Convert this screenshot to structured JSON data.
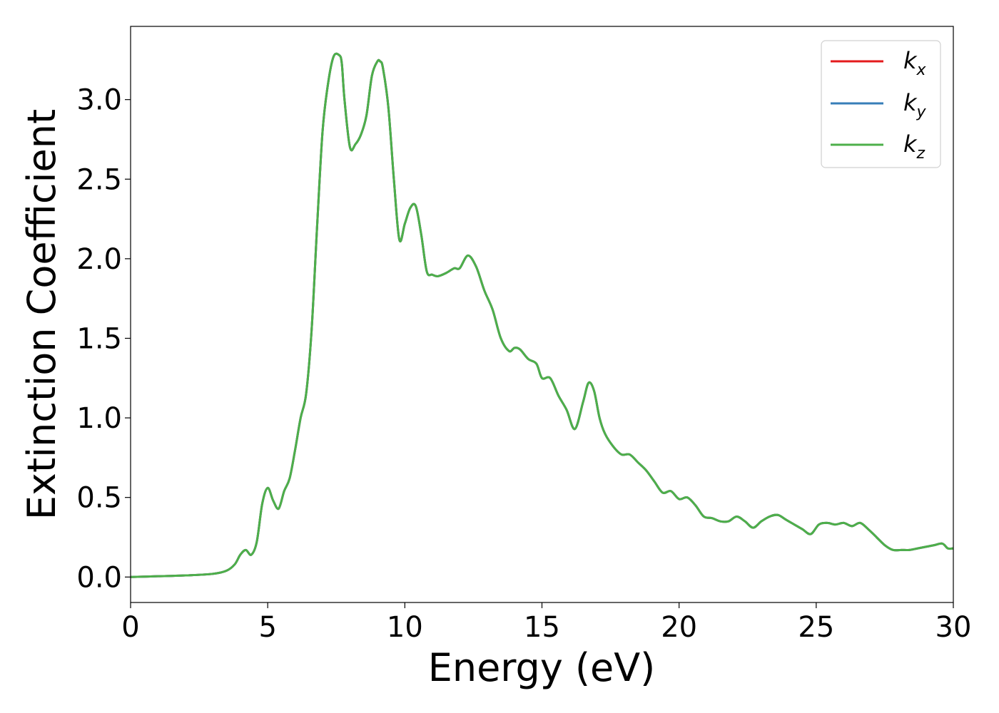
{
  "chart_data": {
    "type": "line",
    "xlabel": "Energy (eV)",
    "ylabel": "Extinction Coefficient",
    "xlim": [
      0,
      30
    ],
    "ylim": [
      -0.16,
      3.46
    ],
    "x_ticks": [
      0,
      5,
      10,
      15,
      20,
      25,
      30
    ],
    "x_tick_labels": [
      "0",
      "5",
      "10",
      "15",
      "20",
      "25",
      "30"
    ],
    "y_ticks": [
      0,
      0.5,
      1,
      1.5,
      2,
      2.5,
      3
    ],
    "y_tick_labels": [
      "0.0",
      "0.5",
      "1.0",
      "1.5",
      "2.0",
      "2.5",
      "3.0"
    ],
    "grid": false,
    "legend_position": "top-right",
    "x": [
      0,
      1,
      2,
      3,
      3.5,
      3.8,
      4.0,
      4.2,
      4.4,
      4.6,
      4.8,
      5.0,
      5.2,
      5.4,
      5.6,
      5.8,
      6.0,
      6.2,
      6.4,
      6.6,
      6.8,
      7.0,
      7.2,
      7.4,
      7.6,
      7.7,
      7.8,
      8.0,
      8.2,
      8.4,
      8.6,
      8.8,
      9.0,
      9.1,
      9.2,
      9.4,
      9.6,
      9.8,
      10.0,
      10.2,
      10.4,
      10.6,
      10.8,
      11.0,
      11.2,
      11.5,
      11.8,
      12.0,
      12.3,
      12.6,
      12.9,
      13.2,
      13.5,
      13.8,
      14.0,
      14.2,
      14.5,
      14.8,
      15.0,
      15.3,
      15.6,
      15.9,
      16.2,
      16.5,
      16.7,
      16.9,
      17.1,
      17.3,
      17.6,
      17.9,
      18.2,
      18.5,
      18.8,
      19.1,
      19.4,
      19.7,
      20.0,
      20.3,
      20.6,
      20.9,
      21.2,
      21.5,
      21.8,
      22.1,
      22.4,
      22.7,
      23.0,
      23.3,
      23.6,
      23.9,
      24.2,
      24.5,
      24.8,
      25.1,
      25.4,
      25.7,
      26.0,
      26.3,
      26.6,
      26.9,
      27.2,
      27.5,
      27.8,
      28.1,
      28.4,
      28.7,
      29.0,
      29.3,
      29.6,
      29.8,
      30.0
    ],
    "series": [
      {
        "name": "k_x",
        "color": "#e41a1c",
        "y": [
          0.0,
          0.005,
          0.01,
          0.02,
          0.04,
          0.08,
          0.14,
          0.17,
          0.14,
          0.22,
          0.46,
          0.56,
          0.48,
          0.43,
          0.54,
          0.62,
          0.8,
          1.0,
          1.15,
          1.55,
          2.2,
          2.8,
          3.1,
          3.27,
          3.28,
          3.23,
          3.0,
          2.7,
          2.72,
          2.78,
          2.9,
          3.15,
          3.24,
          3.24,
          3.2,
          2.95,
          2.5,
          2.12,
          2.22,
          2.32,
          2.33,
          2.15,
          1.92,
          1.9,
          1.89,
          1.91,
          1.94,
          1.94,
          2.02,
          1.95,
          1.8,
          1.68,
          1.5,
          1.42,
          1.44,
          1.43,
          1.37,
          1.34,
          1.25,
          1.25,
          1.14,
          1.05,
          0.93,
          1.1,
          1.22,
          1.17,
          1.0,
          0.9,
          0.82,
          0.77,
          0.77,
          0.72,
          0.67,
          0.6,
          0.53,
          0.54,
          0.49,
          0.5,
          0.45,
          0.38,
          0.37,
          0.35,
          0.35,
          0.38,
          0.35,
          0.31,
          0.35,
          0.38,
          0.39,
          0.36,
          0.33,
          0.3,
          0.27,
          0.33,
          0.34,
          0.33,
          0.34,
          0.32,
          0.34,
          0.3,
          0.25,
          0.2,
          0.17,
          0.17,
          0.17,
          0.18,
          0.19,
          0.2,
          0.21,
          0.18,
          0.18
        ]
      },
      {
        "name": "k_y",
        "color": "#377eb8",
        "y": [
          0.0,
          0.005,
          0.01,
          0.02,
          0.04,
          0.08,
          0.14,
          0.17,
          0.14,
          0.22,
          0.46,
          0.56,
          0.48,
          0.43,
          0.54,
          0.62,
          0.8,
          1.0,
          1.15,
          1.55,
          2.2,
          2.8,
          3.1,
          3.27,
          3.28,
          3.23,
          3.0,
          2.7,
          2.72,
          2.78,
          2.9,
          3.15,
          3.24,
          3.24,
          3.2,
          2.95,
          2.5,
          2.12,
          2.22,
          2.32,
          2.33,
          2.15,
          1.92,
          1.9,
          1.89,
          1.91,
          1.94,
          1.94,
          2.02,
          1.95,
          1.8,
          1.68,
          1.5,
          1.42,
          1.44,
          1.43,
          1.37,
          1.34,
          1.25,
          1.25,
          1.14,
          1.05,
          0.93,
          1.1,
          1.22,
          1.17,
          1.0,
          0.9,
          0.82,
          0.77,
          0.77,
          0.72,
          0.67,
          0.6,
          0.53,
          0.54,
          0.49,
          0.5,
          0.45,
          0.38,
          0.37,
          0.35,
          0.35,
          0.38,
          0.35,
          0.31,
          0.35,
          0.38,
          0.39,
          0.36,
          0.33,
          0.3,
          0.27,
          0.33,
          0.34,
          0.33,
          0.34,
          0.32,
          0.34,
          0.3,
          0.25,
          0.2,
          0.17,
          0.17,
          0.17,
          0.18,
          0.19,
          0.2,
          0.21,
          0.18,
          0.18
        ]
      },
      {
        "name": "k_z",
        "color": "#4daf4a",
        "y": [
          0.0,
          0.005,
          0.01,
          0.02,
          0.04,
          0.08,
          0.14,
          0.17,
          0.14,
          0.22,
          0.46,
          0.56,
          0.48,
          0.43,
          0.54,
          0.62,
          0.8,
          1.0,
          1.15,
          1.55,
          2.2,
          2.8,
          3.1,
          3.27,
          3.28,
          3.23,
          3.0,
          2.7,
          2.72,
          2.78,
          2.9,
          3.15,
          3.24,
          3.24,
          3.2,
          2.95,
          2.5,
          2.12,
          2.22,
          2.32,
          2.33,
          2.15,
          1.92,
          1.9,
          1.89,
          1.91,
          1.94,
          1.94,
          2.02,
          1.95,
          1.8,
          1.68,
          1.5,
          1.42,
          1.44,
          1.43,
          1.37,
          1.34,
          1.25,
          1.25,
          1.14,
          1.05,
          0.93,
          1.1,
          1.22,
          1.17,
          1.0,
          0.9,
          0.82,
          0.77,
          0.77,
          0.72,
          0.67,
          0.6,
          0.53,
          0.54,
          0.49,
          0.5,
          0.45,
          0.38,
          0.37,
          0.35,
          0.35,
          0.38,
          0.35,
          0.31,
          0.35,
          0.38,
          0.39,
          0.36,
          0.33,
          0.3,
          0.27,
          0.33,
          0.34,
          0.33,
          0.34,
          0.32,
          0.34,
          0.3,
          0.25,
          0.2,
          0.17,
          0.17,
          0.17,
          0.18,
          0.19,
          0.2,
          0.21,
          0.18,
          0.18
        ]
      }
    ],
    "legend": [
      {
        "base": "k",
        "sub": "x",
        "color": "#e41a1c"
      },
      {
        "base": "k",
        "sub": "y",
        "color": "#377eb8"
      },
      {
        "base": "k",
        "sub": "z",
        "color": "#4daf4a"
      }
    ]
  }
}
